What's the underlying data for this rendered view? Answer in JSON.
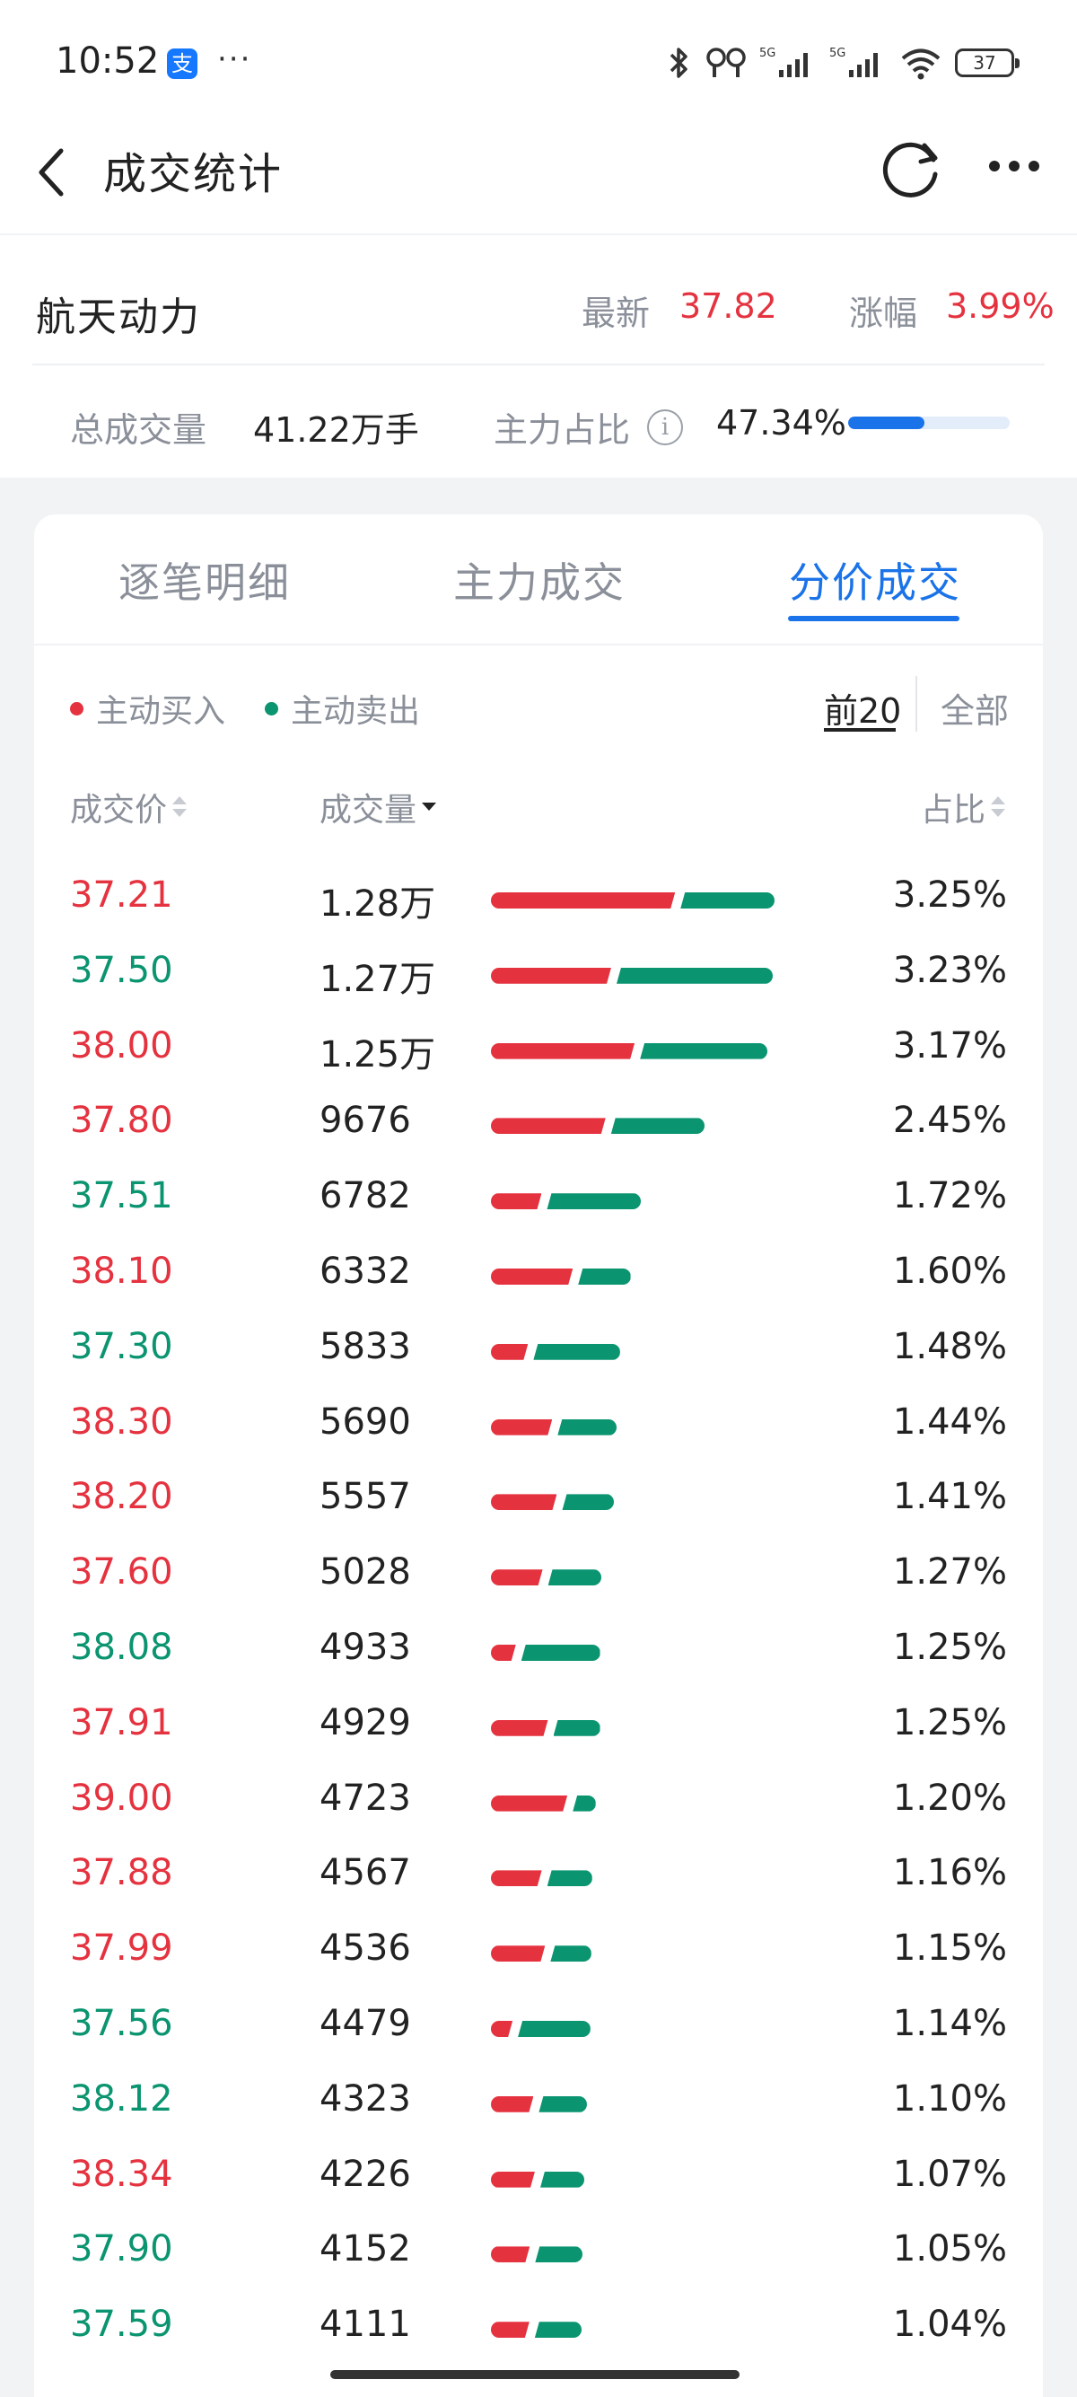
{
  "status_bar": {
    "time": "10:52",
    "battery": "37",
    "app_icon": "alipay-icon"
  },
  "nav": {
    "title": "成交统计"
  },
  "stock": {
    "name": "航天动力",
    "latest_label": "最新",
    "latest_value": "37.82",
    "change_label": "涨幅",
    "change_value": "3.99%",
    "volume_label": "总成交量",
    "volume_value": "41.22万手",
    "main_ratio_label": "主力占比",
    "main_ratio_value": "47.34%",
    "main_ratio_fraction": 0.4734
  },
  "tabs": [
    {
      "label": "逐笔明细",
      "active": false
    },
    {
      "label": "主力成交",
      "active": false
    },
    {
      "label": "分价成交",
      "active": true
    }
  ],
  "legend": {
    "buy": "主动买入",
    "sell": "主动卖出"
  },
  "filters": {
    "top": "前20",
    "all": "全部"
  },
  "columns": {
    "price": "成交价",
    "volume": "成交量",
    "ratio": "占比"
  },
  "colors": {
    "buy": "#e5323f",
    "sell": "#0b9470",
    "accent": "#1a73e8"
  },
  "rows": [
    {
      "price": "37.21",
      "dir": "down",
      "volume": "1.28万",
      "ratio": "3.25%",
      "buy": 0.662,
      "sell": 0.338
    },
    {
      "price": "37.50",
      "dir": "up",
      "volume": "1.27万",
      "ratio": "3.23%",
      "buy": 0.435,
      "sell": 0.565
    },
    {
      "price": "38.00",
      "dir": "down",
      "volume": "1.25万",
      "ratio": "3.17%",
      "buy": 0.53,
      "sell": 0.47
    },
    {
      "price": "37.80",
      "dir": "down",
      "volume": "9676",
      "ratio": "2.45%",
      "buy": 0.55,
      "sell": 0.45
    },
    {
      "price": "37.51",
      "dir": "up",
      "volume": "6782",
      "ratio": "1.72%",
      "buy": 0.35,
      "sell": 0.65
    },
    {
      "price": "38.10",
      "dir": "down",
      "volume": "6332",
      "ratio": "1.60%",
      "buy": 0.61,
      "sell": 0.39
    },
    {
      "price": "37.30",
      "dir": "up",
      "volume": "5833",
      "ratio": "1.48%",
      "buy": 0.3,
      "sell": 0.7
    },
    {
      "price": "38.30",
      "dir": "down",
      "volume": "5690",
      "ratio": "1.44%",
      "buy": 0.51,
      "sell": 0.49
    },
    {
      "price": "38.20",
      "dir": "down",
      "volume": "5557",
      "ratio": "1.41%",
      "buy": 0.56,
      "sell": 0.44
    },
    {
      "price": "37.60",
      "dir": "down",
      "volume": "5028",
      "ratio": "1.27%",
      "buy": 0.49,
      "sell": 0.51
    },
    {
      "price": "38.08",
      "dir": "up",
      "volume": "4933",
      "ratio": "1.25%",
      "buy": 0.24,
      "sell": 0.76
    },
    {
      "price": "37.91",
      "dir": "down",
      "volume": "4929",
      "ratio": "1.25%",
      "buy": 0.55,
      "sell": 0.45
    },
    {
      "price": "39.00",
      "dir": "down",
      "volume": "4723",
      "ratio": "1.20%",
      "buy": 0.77,
      "sell": 0.23
    },
    {
      "price": "37.88",
      "dir": "down",
      "volume": "4567",
      "ratio": "1.16%",
      "buy": 0.53,
      "sell": 0.47
    },
    {
      "price": "37.99",
      "dir": "down",
      "volume": "4536",
      "ratio": "1.15%",
      "buy": 0.57,
      "sell": 0.43
    },
    {
      "price": "37.56",
      "dir": "up",
      "volume": "4479",
      "ratio": "1.14%",
      "buy": 0.23,
      "sell": 0.77
    },
    {
      "price": "38.12",
      "dir": "up",
      "volume": "4323",
      "ratio": "1.10%",
      "buy": 0.47,
      "sell": 0.53
    },
    {
      "price": "38.34",
      "dir": "down",
      "volume": "4226",
      "ratio": "1.07%",
      "buy": 0.5,
      "sell": 0.5
    },
    {
      "price": "37.90",
      "dir": "up",
      "volume": "4152",
      "ratio": "1.05%",
      "buy": 0.45,
      "sell": 0.55
    },
    {
      "price": "37.59",
      "dir": "up",
      "volume": "4111",
      "ratio": "1.04%",
      "buy": 0.45,
      "sell": 0.55
    }
  ]
}
